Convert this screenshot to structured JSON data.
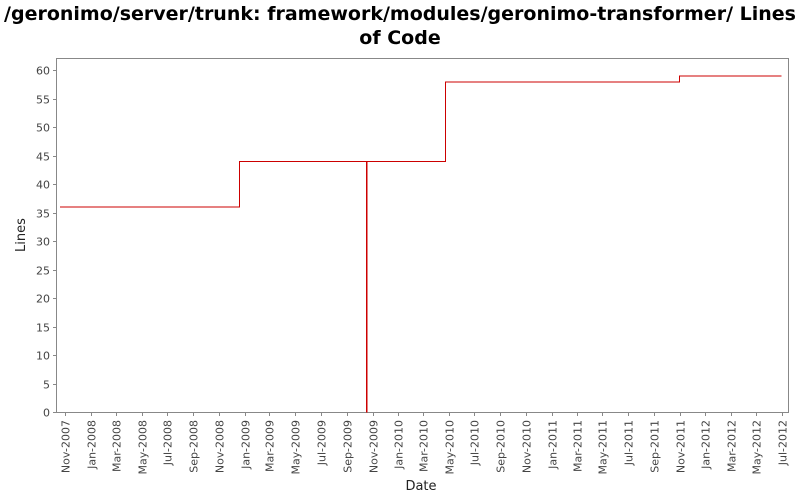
{
  "chart_data": {
    "type": "line",
    "step": true,
    "title": "/geronimo/server/trunk: framework/modules/geronimo-transformer/ Lines of Code",
    "xlabel": "Date",
    "ylabel": "Lines",
    "xlim": [
      "2007-10-13",
      "2012-07-18"
    ],
    "ylim": [
      0,
      62
    ],
    "yticks": [
      0,
      5,
      10,
      15,
      20,
      25,
      30,
      35,
      40,
      45,
      50,
      55,
      60
    ],
    "xtick_labels": [
      "Nov-2007",
      "Jan-2008",
      "Mar-2008",
      "May-2008",
      "Jul-2008",
      "Sep-2008",
      "Nov-2008",
      "Jan-2009",
      "Mar-2009",
      "May-2009",
      "Jul-2009",
      "Sep-2009",
      "Nov-2009",
      "Jan-2010",
      "Mar-2010",
      "May-2010",
      "Jul-2010",
      "Sep-2010",
      "Nov-2010",
      "Jan-2011",
      "Mar-2011",
      "May-2011",
      "Jul-2011",
      "Sep-2011",
      "Nov-2011",
      "Jan-2012",
      "Mar-2012",
      "May-2012",
      "Jul-2012"
    ],
    "grid": false,
    "legend": "none",
    "series_color": "#cc0000",
    "points": [
      {
        "x": "2007-10-20",
        "y": 36
      },
      {
        "x": "2008-12-20",
        "y": 44
      },
      {
        "x": "2009-10-18",
        "y": 0
      },
      {
        "x": "2009-10-19",
        "y": 44
      },
      {
        "x": "2010-04-24",
        "y": 58
      },
      {
        "x": "2011-11-01",
        "y": 59
      },
      {
        "x": "2012-06-30",
        "y": 59
      }
    ]
  }
}
